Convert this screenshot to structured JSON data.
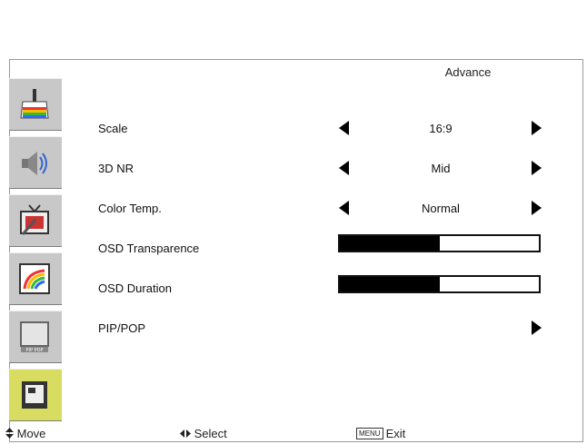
{
  "menu": {
    "section_title": "Advance",
    "rows": [
      {
        "label": "Scale",
        "value": "16:9"
      },
      {
        "label": "3D NR",
        "value": "Mid"
      },
      {
        "label": "Color Temp.",
        "value": "Normal"
      },
      {
        "label": "OSD Transparence",
        "level": 0.5
      },
      {
        "label": "OSD Duration",
        "level": 0.5
      },
      {
        "label": "PIP/POP"
      }
    ]
  },
  "sidebar": {
    "items": [
      {
        "name": "picture-icon"
      },
      {
        "name": "audio-icon"
      },
      {
        "name": "tv-setup-icon"
      },
      {
        "name": "color-icon"
      },
      {
        "name": "pip-pop-icon",
        "text": "PIP POP"
      },
      {
        "name": "advance-icon",
        "selected": true
      }
    ]
  },
  "footer": {
    "move_icon": "up-down-arrows",
    "move_label": "Move",
    "select_icon": "left-right-arrows",
    "select_label": "Select",
    "menu_key": "MENU",
    "exit_label": "Exit"
  },
  "colors": {
    "selected_item": "#d8dc60",
    "sidebar_bg": "#c8c8c8",
    "bar_fill": "#000000"
  }
}
